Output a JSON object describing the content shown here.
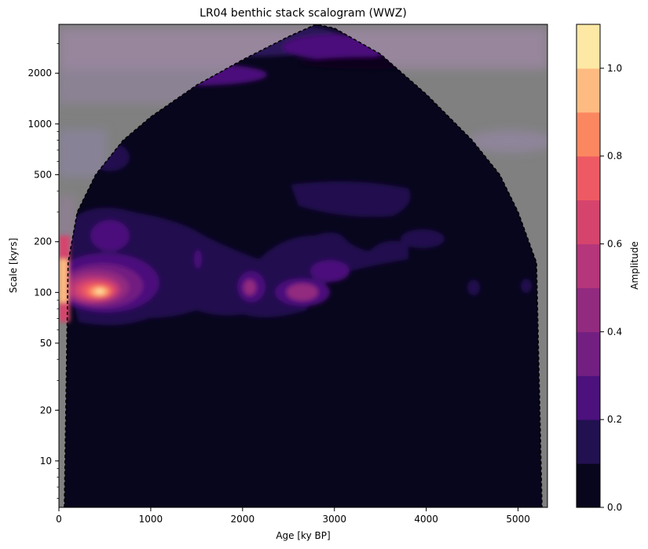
{
  "chart_data": {
    "type": "heatmap",
    "title": "LR04 benthic stack scalogram (WWZ)",
    "xlabel": "Age [ky BP]",
    "ylabel": "Scale [kyrs]",
    "xlim": [
      0,
      5320
    ],
    "ylim": [
      5.3,
      3900
    ],
    "yscale": "log",
    "x_ticks": [
      0,
      1000,
      2000,
      3000,
      4000,
      5000
    ],
    "y_ticks": [
      10,
      20,
      50,
      100,
      200,
      500,
      1000,
      2000
    ],
    "colorbar": {
      "label": "Amplitude",
      "range": [
        0.0,
        1.1
      ],
      "ticks": [
        0.0,
        0.2,
        0.4,
        0.6,
        0.8,
        1.0
      ],
      "levels": [
        0.0,
        0.1,
        0.2,
        0.3,
        0.4,
        0.5,
        0.6,
        0.7,
        0.8,
        0.9,
        1.0,
        1.1
      ],
      "colormap": "magma",
      "colors": [
        "#07061c",
        "#221150",
        "#4c117c",
        "#721f81",
        "#922a7f",
        "#b5367a",
        "#d5446d",
        "#ee5a63",
        "#fb8761",
        "#febb81",
        "#fde8a5"
      ]
    },
    "cone_of_influence": {
      "style": "dashed",
      "x": [
        60,
        100,
        200,
        400,
        700,
        1000,
        1500,
        2000,
        2500,
        2800,
        3000,
        3500,
        4000,
        4500,
        4800,
        5000,
        5200,
        5260
      ],
      "y": [
        5.3,
        150,
        300,
        500,
        800,
        1100,
        1700,
        2400,
        3300,
        3900,
        3700,
        2600,
        1500,
        800,
        500,
        300,
        150,
        5.3
      ]
    },
    "features": [
      {
        "x": 450,
        "y": 93,
        "amplitude": 1.0
      },
      {
        "x": 30,
        "y": 110,
        "amplitude": 1.0
      },
      {
        "x": 400,
        "y": 185,
        "amplitude": 0.3
      },
      {
        "x": 2050,
        "y": 100,
        "amplitude": 0.35
      },
      {
        "x": 2700,
        "y": 97,
        "amplitude": 0.4
      },
      {
        "x": 2750,
        "y": 130,
        "amplitude": 0.3
      },
      {
        "x": 1550,
        "y": 150,
        "amplitude": 0.3
      },
      {
        "x": 3000,
        "y": 280,
        "amplitude": 0.15
      },
      {
        "x": 3600,
        "y": 380,
        "amplitude": 0.15
      },
      {
        "x": 4000,
        "y": 190,
        "amplitude": 0.15
      },
      {
        "x": 4550,
        "y": 100,
        "amplitude": 0.15
      },
      {
        "x": 5100,
        "y": 100,
        "amplitude": 0.15
      },
      {
        "x": 2700,
        "y": 3000,
        "amplitude": 0.25
      },
      {
        "x": 2200,
        "y": 2200,
        "amplitude": 0.2
      }
    ]
  }
}
